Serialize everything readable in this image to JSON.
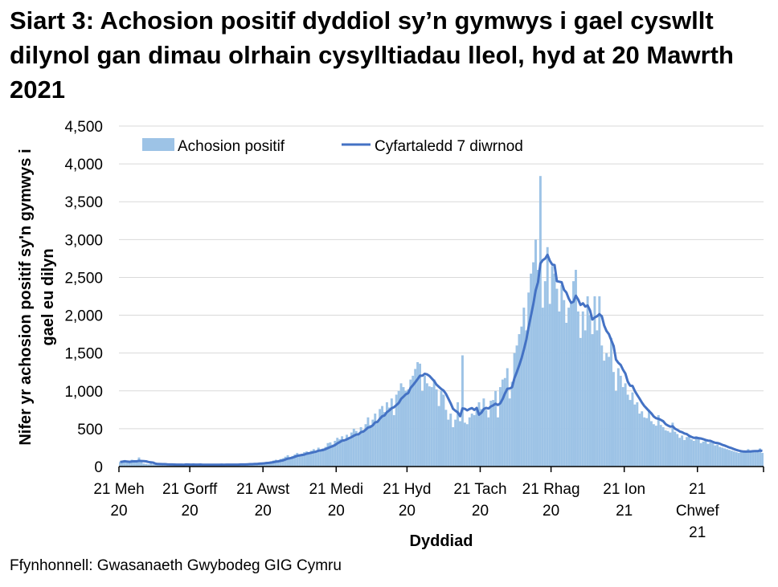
{
  "title": "Siart 3: Achosion positif dyddiol sy’n gymwys i gael cyswllt dilynol gan dimau olrhain cysylltiadau lleol, hyd at 20 Mawrth 2021",
  "source": "Ffynhonnell: Gwasanaeth Gwybodeg GIG Cymru",
  "chart_data": {
    "type": "bar",
    "title": "Siart 3: Achosion positif dyddiol sy’n gymwys i gael cyswllt dilynol gan dimau olrhain cysylltiadau lleol, hyd at 20 Mawrth 2021",
    "xlabel": "Dyddiad",
    "ylabel_lines": [
      "Nifer yr achosion positif sy'n gymwys i",
      "gael eu dilyn"
    ],
    "x_range": [
      "2020-06-21",
      "2021-03-20"
    ],
    "ylim": [
      0,
      4500
    ],
    "yticks": [
      {
        "value": 0,
        "label": "0"
      },
      {
        "value": 500,
        "label": "500"
      },
      {
        "value": 1000,
        "label": "1,000"
      },
      {
        "value": 1500,
        "label": "1,500"
      },
      {
        "value": 2000,
        "label": "2,000"
      },
      {
        "value": 2500,
        "label": "2,500"
      },
      {
        "value": 3000,
        "label": "3,000"
      },
      {
        "value": 3500,
        "label": "3,500"
      },
      {
        "value": 4000,
        "label": "4,000"
      },
      {
        "value": 4500,
        "label": "4,500"
      }
    ],
    "xticks": [
      {
        "date": "2020-06-21",
        "label": [
          "21 Meh",
          "20"
        ]
      },
      {
        "date": "2020-07-21",
        "label": [
          "21 Gorff",
          "20"
        ]
      },
      {
        "date": "2020-08-21",
        "label": [
          "21 Awst",
          "20"
        ]
      },
      {
        "date": "2020-09-21",
        "label": [
          "21 Medi",
          "20"
        ]
      },
      {
        "date": "2020-10-21",
        "label": [
          "21 Hyd",
          "20"
        ]
      },
      {
        "date": "2020-11-21",
        "label": [
          "21 Tach",
          "20"
        ]
      },
      {
        "date": "2020-12-21",
        "label": [
          "21 Rhag",
          "20"
        ]
      },
      {
        "date": "2021-01-21",
        "label": [
          "21 Ion",
          "21"
        ]
      },
      {
        "date": "2021-02-21",
        "label": [
          "21",
          "Chwef",
          "21"
        ]
      }
    ],
    "grid": true,
    "legend_position": "top",
    "colors": {
      "bars": "#9DC3E6",
      "line": "#4472C4",
      "grid": "#D9D9D9",
      "axis": "#000000"
    },
    "series": [
      {
        "name": "Achosion positif",
        "type": "bar",
        "values": [
          60,
          70,
          80,
          55,
          50,
          90,
          75,
          60,
          120,
          65,
          40,
          35,
          30,
          45,
          30,
          25,
          35,
          30,
          25,
          30,
          25,
          20,
          30,
          25,
          20,
          25,
          30,
          20,
          40,
          25,
          20,
          25,
          20,
          30,
          25,
          20,
          20,
          25,
          20,
          30,
          25,
          20,
          25,
          30,
          20,
          25,
          30,
          25,
          20,
          30,
          30,
          35,
          25,
          30,
          40,
          35,
          30,
          45,
          40,
          50,
          45,
          55,
          60,
          50,
          70,
          80,
          90,
          75,
          100,
          110,
          130,
          150,
          120,
          140,
          160,
          180,
          150,
          170,
          190,
          200,
          180,
          210,
          230,
          200,
          250,
          220,
          240,
          260,
          310,
          320,
          290,
          340,
          380,
          360,
          400,
          330,
          420,
          390,
          450,
          500,
          470,
          430,
          520,
          480,
          560,
          650,
          550,
          620,
          700,
          580,
          760,
          800,
          720,
          850,
          780,
          900,
          680,
          950,
          1000,
          1100,
          1050,
          1000,
          1020,
          1150,
          1200,
          1290,
          1380,
          1360,
          1000,
          1200,
          1100,
          1060,
          1050,
          1150,
          1020,
          800,
          1000,
          950,
          750,
          620,
          700,
          520,
          620,
          850,
          600,
          1470,
          580,
          560,
          650,
          700,
          680,
          780,
          850,
          760,
          900,
          750,
          650,
          870,
          880,
          1000,
          650,
          1050,
          1150,
          1170,
          1300,
          900,
          1120,
          1500,
          1600,
          1750,
          1850,
          2100,
          1800,
          2300,
          2550,
          2700,
          3000,
          2600,
          3840,
          2100,
          2450,
          2900,
          2150,
          2650,
          2550,
          2350,
          2050,
          2400,
          2200,
          1900,
          2100,
          2150,
          2450,
          2600,
          2050,
          1700,
          2050,
          1800,
          2250,
          2000,
          1750,
          2250,
          1800,
          2250,
          1600,
          1400,
          1500,
          1450,
          1700,
          1250,
          1000,
          1300,
          1200,
          1050,
          1100,
          950,
          880,
          980,
          820,
          850,
          700,
          730,
          650,
          640,
          750,
          600,
          560,
          540,
          680,
          550,
          520,
          480,
          470,
          450,
          580,
          460,
          430,
          380,
          410,
          350,
          390,
          420,
          360,
          340,
          400,
          370,
          310,
          330,
          350,
          300,
          320,
          310,
          280,
          290,
          260,
          250,
          240,
          230,
          220,
          210,
          200,
          190,
          180,
          200,
          190,
          210,
          230,
          200,
          210,
          190,
          200,
          240,
          180
        ]
      },
      {
        "name": "Cyfartaledd 7 diwrnod",
        "type": "line",
        "derived_from": "Achosion positif",
        "window_days": 7
      }
    ]
  }
}
